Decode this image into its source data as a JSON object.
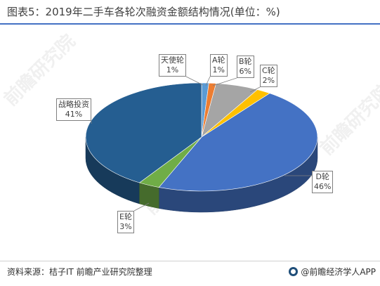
{
  "title": "图表5：2019年二手车各轮次融资金额结构情况(单位：%)",
  "source": "资料来源：桔子IT 前瞻产业研究院整理",
  "brand": "@前瞻经济学人APP",
  "watermark": "前瞻研究院",
  "chart_data": {
    "type": "pie",
    "title": "图表5：2019年二手车各轮次融资金额结构情况(单位：%)",
    "unit": "%",
    "slices": [
      {
        "name": "天使轮",
        "value": 1,
        "label": "1%",
        "color": "#5b9bd5"
      },
      {
        "name": "A轮",
        "value": 1,
        "label": "1%",
        "color": "#ed7d31"
      },
      {
        "name": "B轮",
        "value": 6,
        "label": "6%",
        "color": "#a5a5a5"
      },
      {
        "name": "C轮",
        "value": 2,
        "label": "2%",
        "color": "#ffc000"
      },
      {
        "name": "D轮",
        "value": 46,
        "label": "46%",
        "color": "#4472c4"
      },
      {
        "name": "E轮",
        "value": 3,
        "label": "3%",
        "color": "#70ad47"
      },
      {
        "name": "战略投资",
        "value": 41,
        "label": "41%",
        "color": "#255e91"
      }
    ]
  }
}
